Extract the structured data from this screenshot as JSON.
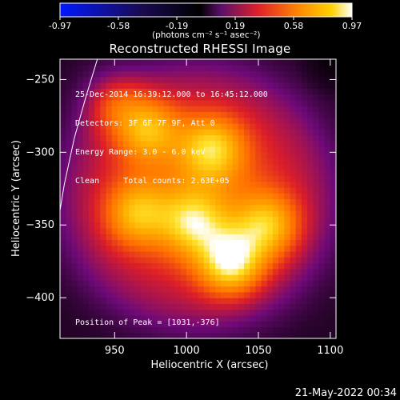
{
  "colorbar": {
    "ticks": [
      "-0.97",
      "-0.58",
      "-0.19",
      "0.19",
      "0.58",
      "0.97"
    ],
    "unit_label": "(photons cm⁻² s⁻¹ asec⁻²)"
  },
  "title": "Reconstructed RHESSI Image",
  "info_lines": [
    "25-Dec-2014 16:39:12.000 to 16:45:12.000",
    "Detectors: 3F 6F 7F 9F, Att 0",
    "Energy Range: 3.0 - 6.0 keV",
    "Clean     Total counts: 2.63E+05"
  ],
  "peak_text": "Position of Peak = [1031,-376]",
  "footer_date": "21-May-2022 00:34",
  "chart_data": {
    "type": "heatmap",
    "title": "Reconstructed RHESSI Image",
    "xlabel": "Heliocentric X (arcsec)",
    "ylabel": "Heliocentric Y (arcsec)",
    "xlim": [
      912,
      1104
    ],
    "ylim": [
      -428,
      -236
    ],
    "xticks": [
      950,
      1000,
      1050,
      1100
    ],
    "yticks": [
      -250,
      -300,
      -350,
      -400
    ],
    "colorbar_range": [
      -0.97,
      0.97
    ],
    "colormap": "fire",
    "sources": [
      {
        "x": 1031,
        "y": -376,
        "value": 0.97
      },
      {
        "x": 1018,
        "y": -297,
        "value": 0.75
      },
      {
        "x": 972,
        "y": -283,
        "value": 0.72
      },
      {
        "x": 1057,
        "y": -350,
        "value": 0.74
      },
      {
        "x": 1005,
        "y": -348,
        "value": 0.7
      },
      {
        "x": 965,
        "y": -342,
        "value": 0.66
      },
      {
        "x": 945,
        "y": -260,
        "value": 0.62
      }
    ],
    "peak": {
      "x": 1031,
      "y": -376
    },
    "limb_curve": [
      [
        938,
        -236
      ],
      [
        930,
        -262
      ],
      [
        922,
        -290
      ],
      [
        915,
        -322
      ],
      [
        912,
        -340
      ]
    ],
    "colors": {
      "background": "#000000",
      "axis": "#ffffff"
    }
  }
}
